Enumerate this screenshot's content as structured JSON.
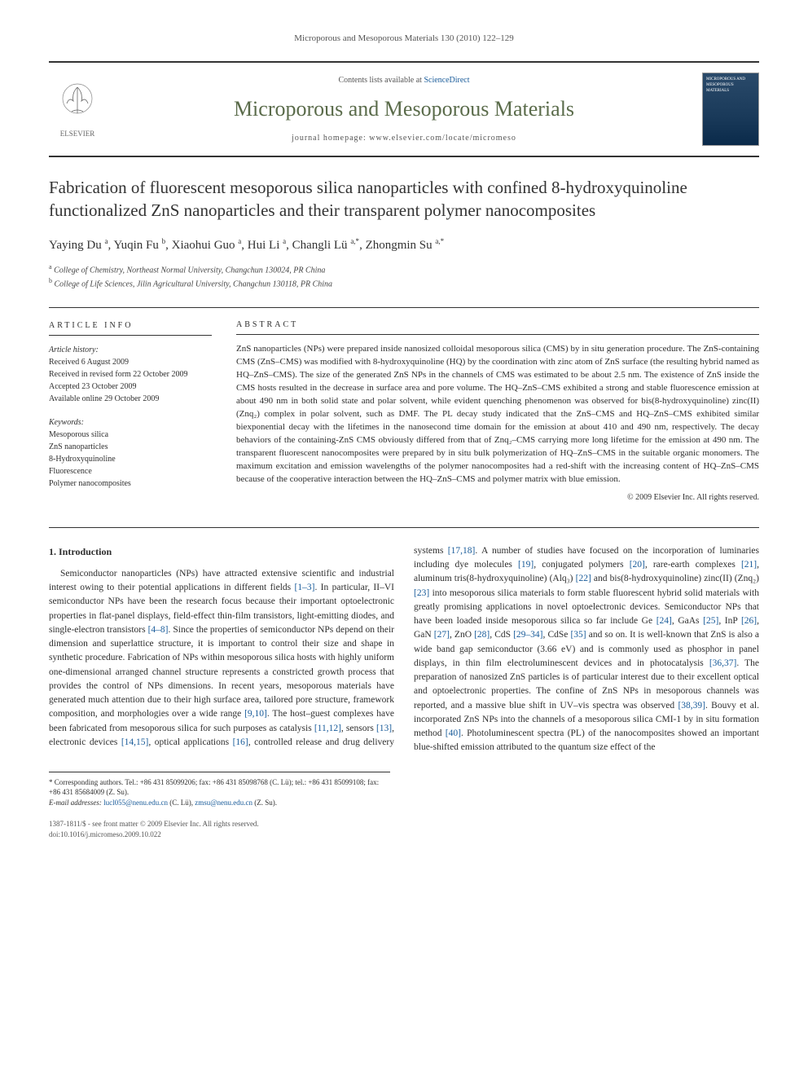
{
  "page_header": "Microporous and Mesoporous Materials 130 (2010) 122–129",
  "masthead": {
    "contents_prefix": "Contents lists available at ",
    "contents_link": "ScienceDirect",
    "journal_name": "Microporous and Mesoporous Materials",
    "homepage_label": "journal homepage: www.elsevier.com/locate/micromeso",
    "publisher": "ELSEVIER",
    "cover_label": "MICROPOROUS AND MESOPOROUS MATERIALS"
  },
  "title": "Fabrication of fluorescent mesoporous silica nanoparticles with confined 8-hydroxyquinoline functionalized ZnS nanoparticles and their transparent polymer nanocomposites",
  "authors_html": "Yaying Du <sup>a</sup>, Yuqin Fu <sup>b</sup>, Xiaohui Guo <sup>a</sup>, Hui Li <sup>a</sup>, Changli Lü <sup>a,*</sup>, Zhongmin Su <sup>a,*</sup>",
  "affiliations": [
    {
      "sup": "a",
      "text": "College of Chemistry, Northeast Normal University, Changchun 130024, PR China"
    },
    {
      "sup": "b",
      "text": "College of Life Sciences, Jilin Agricultural University, Changchun 130118, PR China"
    }
  ],
  "article_info": {
    "heading": "ARTICLE INFO",
    "history_label": "Article history:",
    "history": [
      "Received 6 August 2009",
      "Received in revised form 22 October 2009",
      "Accepted 23 October 2009",
      "Available online 29 October 2009"
    ],
    "keywords_label": "Keywords:",
    "keywords": [
      "Mesoporous silica",
      "ZnS nanoparticles",
      "8-Hydroxyquinoline",
      "Fluorescence",
      "Polymer nanocomposites"
    ]
  },
  "abstract": {
    "heading": "ABSTRACT",
    "text": "ZnS nanoparticles (NPs) were prepared inside nanosized colloidal mesoporous silica (CMS) by in situ generation procedure. The ZnS-containing CMS (ZnS–CMS) was modified with 8-hydroxyquinoline (HQ) by the coordination with zinc atom of ZnS surface (the resulting hybrid named as HQ–ZnS–CMS). The size of the generated ZnS NPs in the channels of CMS was estimated to be about 2.5 nm. The existence of ZnS inside the CMS hosts resulted in the decrease in surface area and pore volume. The HQ–ZnS–CMS exhibited a strong and stable fluorescence emission at about 490 nm in both solid state and polar solvent, while evident quenching phenomenon was observed for bis(8-hydroxyquinoline) zinc(II) (Znq₂) complex in polar solvent, such as DMF. The PL decay study indicated that the ZnS–CMS and HQ–ZnS–CMS exhibited similar biexponential decay with the lifetimes in the nanosecond time domain for the emission at about 410 and 490 nm, respectively. The decay behaviors of the containing-ZnS CMS obviously differed from that of Znq₂–CMS carrying more long lifetime for the emission at 490 nm. The transparent fluorescent nanocomposites were prepared by in situ bulk polymerization of HQ–ZnS–CMS in the suitable organic monomers. The maximum excitation and emission wavelengths of the polymer nanocomposites had a red-shift with the increasing content of HQ–ZnS–CMS because of the cooperative interaction between the HQ–ZnS–CMS and polymer matrix with blue emission.",
    "copyright": "© 2009 Elsevier Inc. All rights reserved."
  },
  "intro": {
    "heading": "1. Introduction",
    "p1_a": "Semiconductor nanoparticles (NPs) have attracted extensive scientific and industrial interest owing to their potential applications in different fields ",
    "r1": "[1–3]",
    "p1_b": ". In particular, II–VI semiconductor NPs have been the research focus because their important optoelectronic properties in flat-panel displays, field-effect thin-film transistors, light-emitting diodes, and single-electron transistors ",
    "r2": "[4–8]",
    "p1_c": ". Since the properties of semiconductor NPs depend on their dimension and superlattice structure, it is important to control their size and shape in synthetic procedure. Fabrication of NPs within mesoporous silica hosts with highly uniform one-dimensional arranged channel structure represents a constricted growth process that provides the control of NPs dimensions. In recent years, mesoporous materials have generated much attention due to their high surface area, tailored pore structure, framework composition, and morphologies over a wide range ",
    "r3": "[9,10]",
    "p1_d": ". The host–guest complexes have been fabricated from mesoporous silica for such purposes as catalysis ",
    "r4": "[11,12]",
    "p1_e": ", sensors ",
    "r5": "[13]",
    "p1_f": ", electronic devices ",
    "r6": "[14,15]",
    "p1_g": ", optical applications ",
    "r7": "[16]",
    "p1_h": ", controlled release and drug delivery systems ",
    "r8": "[17,18]",
    "p1_i": ". A number of studies have focused on the incorporation of luminaries including dye molecules ",
    "r9": "[19]",
    "p1_j": ", conjugated polymers ",
    "r10": "[20]",
    "p1_k": ", rare-earth complexes ",
    "r11": "[21]",
    "p1_l": ", aluminum tris(8-hydroxyquinoline) (Alq₃) ",
    "r12": "[22]",
    "p1_m": " and bis(8-hydroxyquinoline) zinc(II) (Znq₂) ",
    "r13": "[23]",
    "p1_n": " into mesoporous silica materials to form stable fluorescent hybrid solid materials with greatly promising applications in novel optoelectronic devices. Semiconductor NPs that have been loaded inside mesoporous silica so far include Ge ",
    "r14": "[24]",
    "p1_o": ", GaAs ",
    "r15": "[25]",
    "p1_p": ", InP ",
    "r16": "[26]",
    "p1_q": ", GaN ",
    "r17": "[27]",
    "p1_r": ", ZnO ",
    "r18": "[28]",
    "p1_s": ", CdS ",
    "r19": "[29–34]",
    "p1_t": ", CdSe ",
    "r20": "[35]",
    "p1_u": " and so on. It is well-known that ZnS is also a wide band gap semiconductor (3.66 eV) and is commonly used as phosphor in panel displays, in thin film electroluminescent devices and in photocatalysis ",
    "r21": "[36,37]",
    "p1_v": ". The preparation of nanosized ZnS particles is of particular interest due to their excellent optical and optoelectronic properties. The confine of ZnS NPs in mesoporous channels was reported, and a massive blue shift in UV–vis spectra was observed ",
    "r22": "[38,39]",
    "p1_w": ". Bouvy et al. incorporated ZnS NPs into the channels of a mesoporous silica CMI-1 by in situ formation method ",
    "r23": "[40]",
    "p1_x": ". Photoluminescent spectra (PL) of the nanocomposites showed an important blue-shifted emission attributed to the quantum size effect of the"
  },
  "footnotes": {
    "corresponding": "* Corresponding authors. Tel.: +86 431 85099206; fax: +86 431 85098768 (C. Lü); tel.: +86 431 85099108; fax: +86 431 85684009 (Z. Su).",
    "email_label": "E-mail addresses: ",
    "email1": "lucl055@nenu.edu.cn",
    "email1_who": " (C. Lü), ",
    "email2": "zmsu@nenu.edu.cn",
    "email2_who": " (Z. Su)."
  },
  "footer": {
    "line1": "1387-1811/$ - see front matter © 2009 Elsevier Inc. All rights reserved.",
    "doi": "doi:10.1016/j.micromeso.2009.10.022"
  },
  "colors": {
    "link": "#1a5c9a",
    "journal_green": "#5a6b4a",
    "rule": "#333333",
    "text": "#2e2e2e"
  }
}
